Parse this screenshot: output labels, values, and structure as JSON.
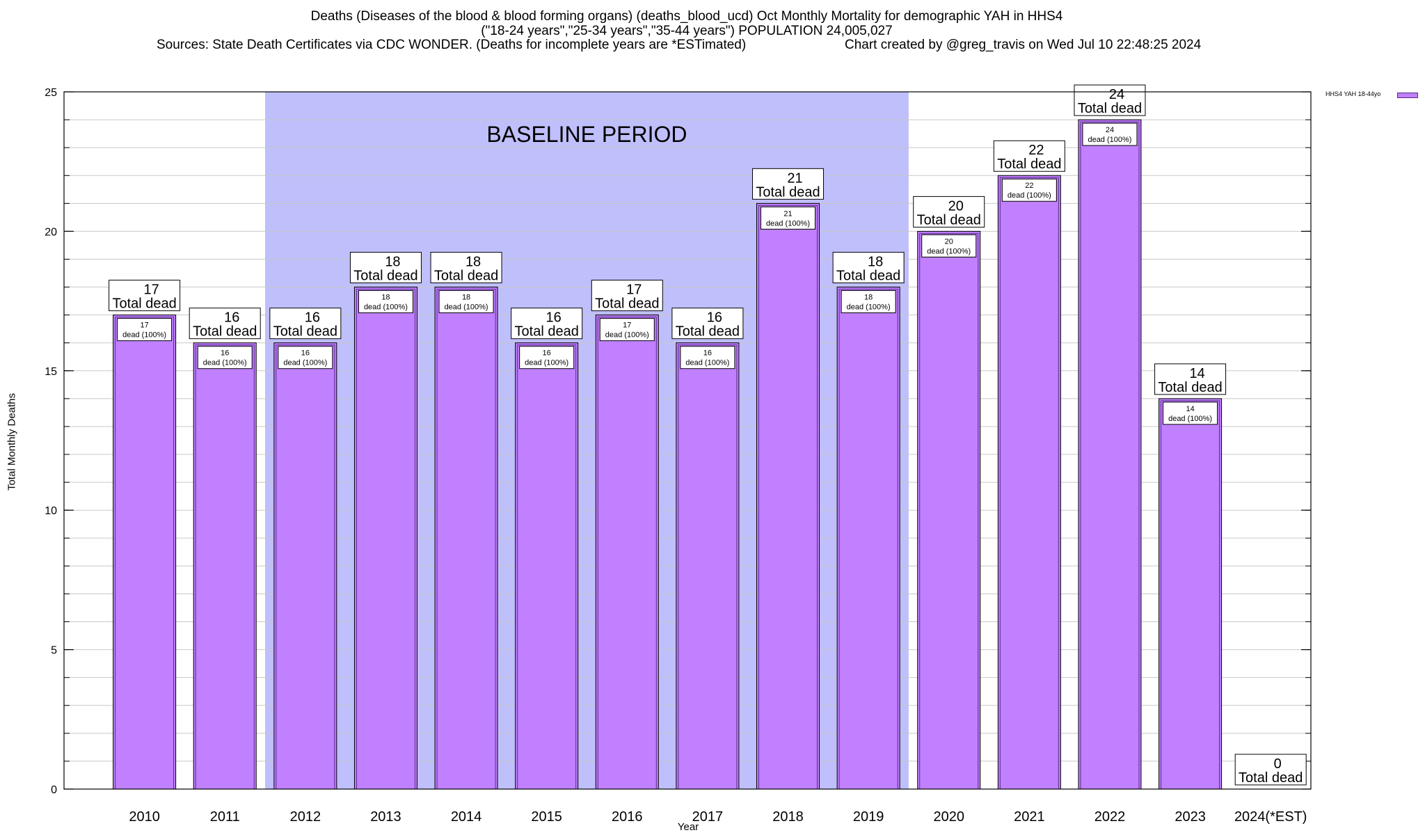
{
  "chart_data": {
    "type": "bar",
    "title_lines": [
      "Deaths (Diseases of the blood & blood forming organs) (deaths_blood_ucd) Oct Monthly Mortality for demographic YAH in HHS4",
      "(\"18-24 years\",\"25-34 years\",\"35-44 years\") POPULATION 24,005,027"
    ],
    "source": "Sources: State Death Certificates via CDC WONDER. (Deaths for incomplete years are *ESTimated)",
    "credit": "Chart created by @greg_travis on Wed Jul 10 22:48:25 2024",
    "xlabel": "Year",
    "ylabel": "Total Monthly Deaths",
    "ylim": [
      0,
      25
    ],
    "yticks": [
      0,
      5,
      10,
      15,
      20,
      25
    ],
    "minor_ticks_per_major": 5,
    "grid": true,
    "categories": [
      "2010",
      "2011",
      "2012",
      "2013",
      "2014",
      "2015",
      "2016",
      "2017",
      "2018",
      "2019",
      "2020",
      "2021",
      "2022",
      "2023",
      "2024(*EST)"
    ],
    "series": [
      {
        "name": "HHS4 YAH 18-44yo",
        "color": "#c080ff",
        "values": [
          17,
          16,
          16,
          18,
          18,
          16,
          17,
          16,
          21,
          18,
          20,
          22,
          24,
          14,
          0
        ]
      }
    ],
    "total_label": "Total dead",
    "inner_label": "dead (100%)",
    "baseline": {
      "label": "BASELINE PERIOD",
      "from": "2012",
      "to": "2019",
      "color": "#bfbffb"
    },
    "legend_position": "top-right"
  }
}
